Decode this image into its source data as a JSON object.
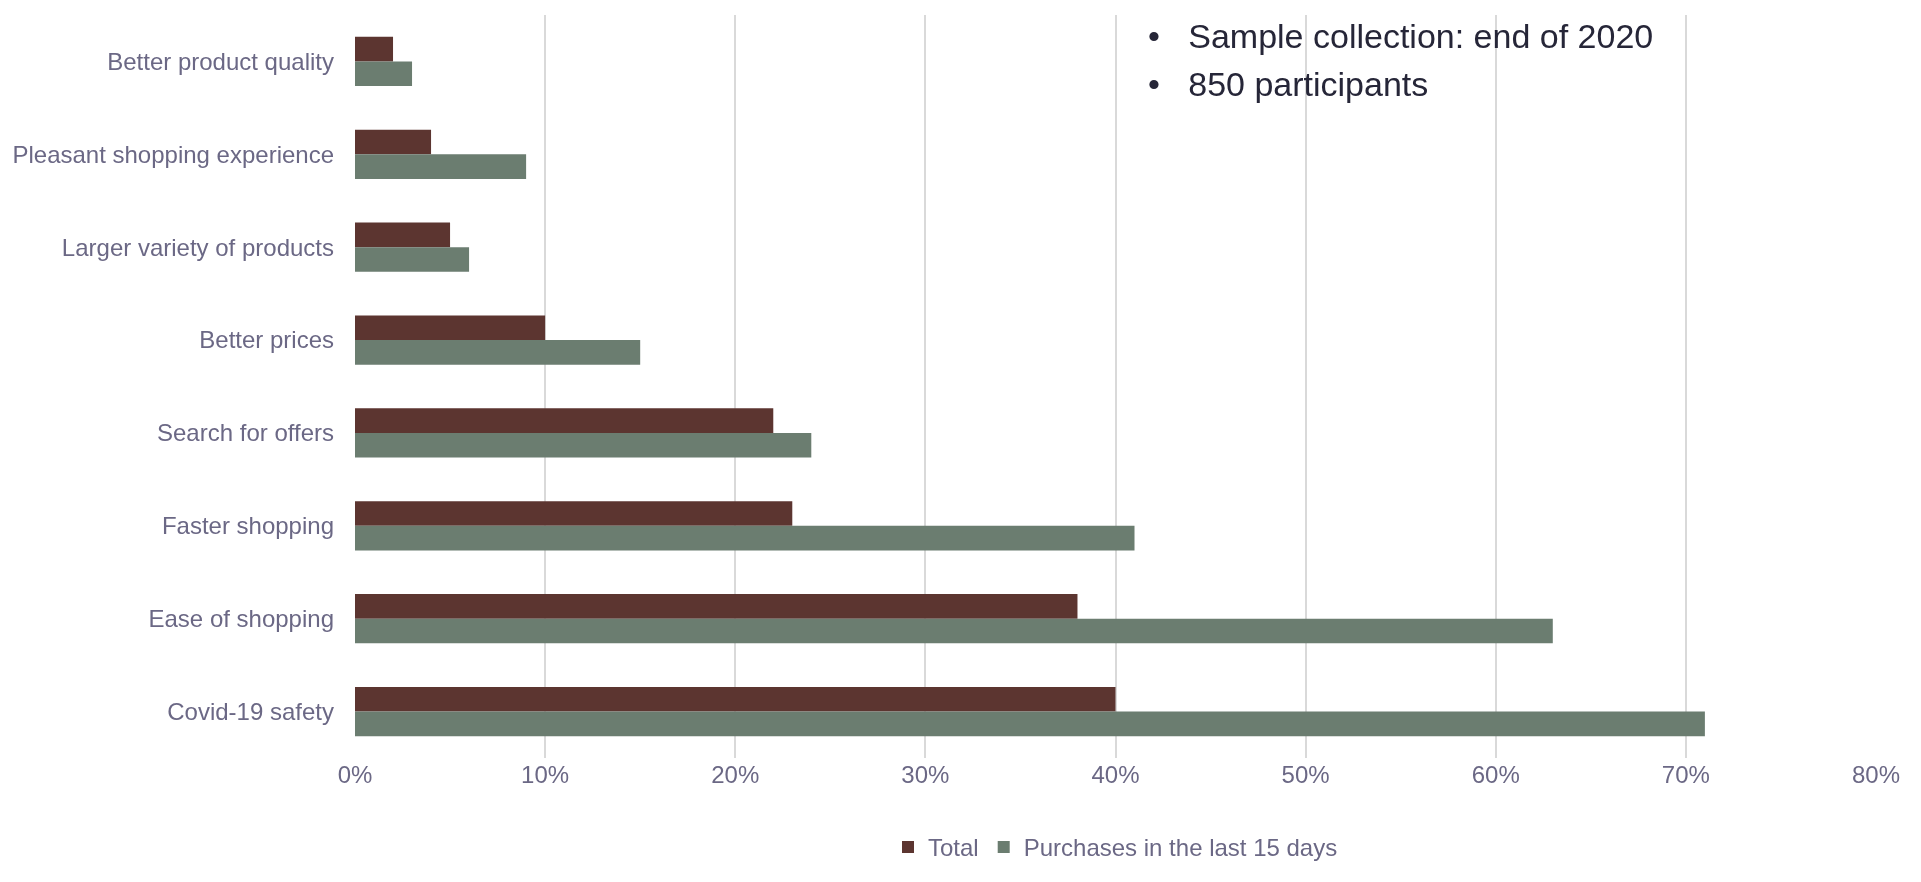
{
  "chart_data": {
    "type": "bar",
    "orientation": "horizontal",
    "categories": [
      "Better product quality",
      "Pleasant shopping experience",
      "Larger variety of products",
      "Better prices",
      "Search for offers",
      "Faster shopping",
      "Ease of shopping",
      "Covid-19 safety"
    ],
    "series": [
      {
        "name": "Total",
        "color": "#5c3530",
        "values": [
          2,
          4,
          5,
          10,
          22,
          23,
          38,
          40
        ]
      },
      {
        "name": "Purchases in the last 15 days",
        "color": "#6b7d70",
        "values": [
          3,
          9,
          6,
          15,
          24,
          41,
          63,
          71
        ]
      }
    ],
    "xlim": [
      0,
      80
    ],
    "xticks": [
      {
        "value": 0,
        "label": "0%"
      },
      {
        "value": 10,
        "label": "10%"
      },
      {
        "value": 20,
        "label": "20%"
      },
      {
        "value": 30,
        "label": "30%"
      },
      {
        "value": 40,
        "label": "40%"
      },
      {
        "value": 50,
        "label": "50%"
      },
      {
        "value": 60,
        "label": "60%"
      },
      {
        "value": 70,
        "label": "70%"
      },
      {
        "value": 80,
        "label": "80%"
      }
    ],
    "grid": "x",
    "legend": "bottom",
    "annotations": [
      "•   Sample collection: end of 2020",
      "•   850 participants"
    ]
  }
}
